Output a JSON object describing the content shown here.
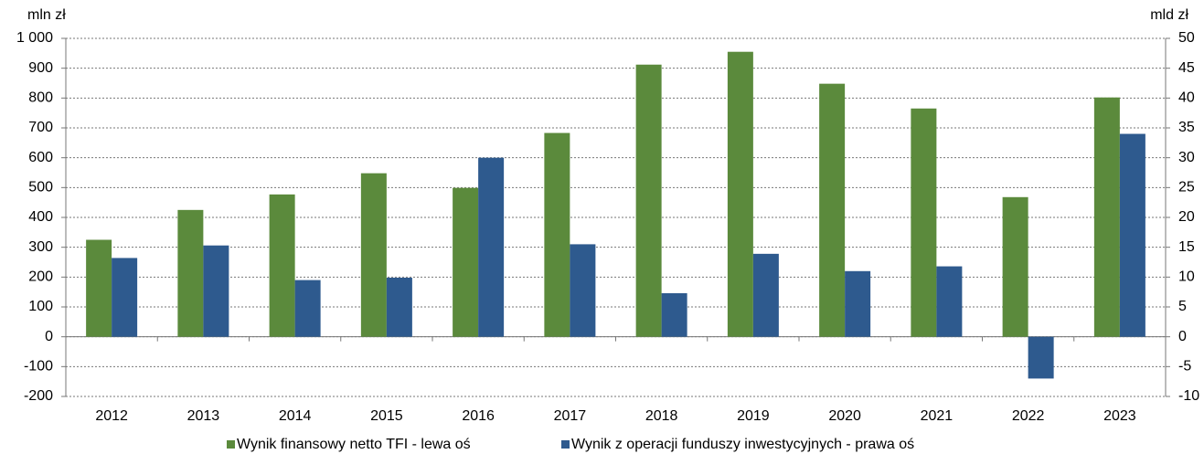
{
  "chart_data": {
    "type": "bar",
    "y_label": "mln zł",
    "y2_label": "mld zł",
    "categories": [
      "2012",
      "2013",
      "2014",
      "2015",
      "2016",
      "2017",
      "2018",
      "2019",
      "2020",
      "2021",
      "2022",
      "2023"
    ],
    "series": [
      {
        "name": "Wynik finansowy netto TFI - lewa oś",
        "color": "#5b8a3c",
        "values": [
          325,
          425,
          477,
          548,
          499,
          683,
          912,
          955,
          848,
          765,
          468,
          802
        ]
      },
      {
        "name": "Wynik z operacji funduszy inwestycyjnych - prawa oś",
        "color": "#2e5a8e",
        "axis": "y2",
        "values": [
          13.2,
          15.3,
          9.5,
          9.9,
          30.0,
          15.5,
          7.3,
          13.9,
          11.0,
          11.8,
          -7.0,
          34.0
        ]
      }
    ],
    "ylim": [
      -200,
      1000
    ],
    "yticks": [
      -200,
      -100,
      0,
      100,
      200,
      300,
      400,
      500,
      600,
      700,
      800,
      900,
      {
        "value": 1000,
        "label": "1 000"
      }
    ],
    "y2lim": [
      -10,
      50
    ],
    "y2ticks": [
      -10,
      -5,
      0,
      5,
      10,
      15,
      20,
      25,
      30,
      35,
      40,
      45,
      50
    ],
    "grid": true
  }
}
